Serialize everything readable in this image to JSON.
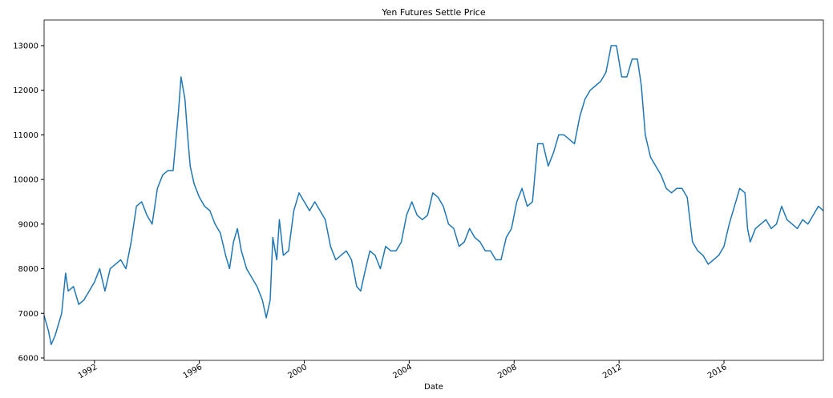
{
  "chart_data": {
    "type": "line",
    "title": "Yen Futures Settle Price",
    "x_label": "Date",
    "x": [
      1990.08,
      1990.25,
      1990.35,
      1990.5,
      1990.75,
      1990.9,
      1991.0,
      1991.2,
      1991.4,
      1991.6,
      1991.8,
      1992.0,
      1992.2,
      1992.4,
      1992.6,
      1992.8,
      1993.0,
      1993.2,
      1993.4,
      1993.6,
      1993.8,
      1994.0,
      1994.2,
      1994.4,
      1994.6,
      1994.8,
      1995.0,
      1995.2,
      1995.3,
      1995.45,
      1995.55,
      1995.65,
      1995.8,
      1996.0,
      1996.2,
      1996.4,
      1996.6,
      1996.8,
      1997.0,
      1997.15,
      1997.3,
      1997.45,
      1997.6,
      1997.8,
      1998.0,
      1998.2,
      1998.4,
      1998.55,
      1998.7,
      1998.8,
      1998.95,
      1999.05,
      1999.2,
      1999.4,
      1999.6,
      1999.8,
      2000.0,
      2000.2,
      2000.4,
      2000.6,
      2000.8,
      2001.0,
      2001.2,
      2001.4,
      2001.6,
      2001.8,
      2002.0,
      2002.15,
      2002.3,
      2002.5,
      2002.7,
      2002.9,
      2003.1,
      2003.3,
      2003.5,
      2003.7,
      2003.9,
      2004.1,
      2004.3,
      2004.5,
      2004.7,
      2004.9,
      2005.1,
      2005.3,
      2005.5,
      2005.7,
      2005.9,
      2006.1,
      2006.3,
      2006.5,
      2006.7,
      2006.9,
      2007.1,
      2007.3,
      2007.5,
      2007.7,
      2007.9,
      2008.1,
      2008.3,
      2008.5,
      2008.7,
      2008.9,
      2009.1,
      2009.3,
      2009.5,
      2009.7,
      2009.9,
      2010.1,
      2010.3,
      2010.5,
      2010.7,
      2010.9,
      2011.1,
      2011.3,
      2011.5,
      2011.7,
      2011.9,
      2012.1,
      2012.3,
      2012.5,
      2012.7,
      2012.85,
      2013.0,
      2013.2,
      2013.4,
      2013.6,
      2013.8,
      2014.0,
      2014.2,
      2014.4,
      2014.6,
      2014.8,
      2015.0,
      2015.2,
      2015.4,
      2015.6,
      2015.8,
      2016.0,
      2016.2,
      2016.4,
      2016.6,
      2016.8,
      2016.9,
      2017.0,
      2017.2,
      2017.4,
      2017.6,
      2017.8,
      2018.0,
      2018.2,
      2018.4,
      2018.6,
      2018.8,
      2019.0,
      2019.2,
      2019.4,
      2019.6,
      2019.79
    ],
    "series": [
      {
        "name": "Settle",
        "color": "#1f77b4",
        "values": [
          6950,
          6600,
          6300,
          6500,
          7000,
          7900,
          7500,
          7600,
          7200,
          7300,
          7500,
          7700,
          8000,
          7500,
          8000,
          8100,
          8200,
          8000,
          8600,
          9400,
          9500,
          9200,
          9000,
          9800,
          10100,
          10200,
          10200,
          11500,
          12300,
          11800,
          11000,
          10300,
          9900,
          9600,
          9400,
          9300,
          9000,
          8800,
          8300,
          8000,
          8600,
          8900,
          8400,
          8000,
          7800,
          7600,
          7300,
          6900,
          7300,
          8700,
          8200,
          9100,
          8300,
          8400,
          9300,
          9700,
          9500,
          9300,
          9500,
          9300,
          9100,
          8500,
          8200,
          8300,
          8400,
          8200,
          7600,
          7500,
          7900,
          8400,
          8300,
          8000,
          8500,
          8400,
          8400,
          8600,
          9200,
          9500,
          9200,
          9100,
          9200,
          9700,
          9600,
          9400,
          9000,
          8900,
          8500,
          8600,
          8900,
          8700,
          8600,
          8400,
          8400,
          8200,
          8200,
          8700,
          8900,
          9500,
          9800,
          9400,
          9500,
          10800,
          10800,
          10300,
          10600,
          11000,
          11000,
          10900,
          10800,
          11400,
          11800,
          12000,
          12100,
          12200,
          12400,
          13000,
          13000,
          12300,
          12300,
          12700,
          12700,
          12100,
          11000,
          10500,
          10300,
          10100,
          9800,
          9700,
          9800,
          9800,
          9600,
          8600,
          8400,
          8300,
          8100,
          8200,
          8300,
          8500,
          9000,
          9400,
          9800,
          9700,
          8900,
          8600,
          8900,
          9000,
          9100,
          8900,
          9000,
          9400,
          9100,
          9000,
          8900,
          9100,
          9000,
          9200,
          9400,
          9300
        ]
      }
    ],
    "xlim": [
      1990.08,
      2019.79
    ],
    "xticks": [
      1992,
      1996,
      2000,
      2004,
      2008,
      2012,
      2016
    ],
    "ylim": [
      5946,
      13574
    ],
    "yticks": [
      6000,
      7000,
      8000,
      9000,
      10000,
      11000,
      12000,
      13000
    ]
  }
}
